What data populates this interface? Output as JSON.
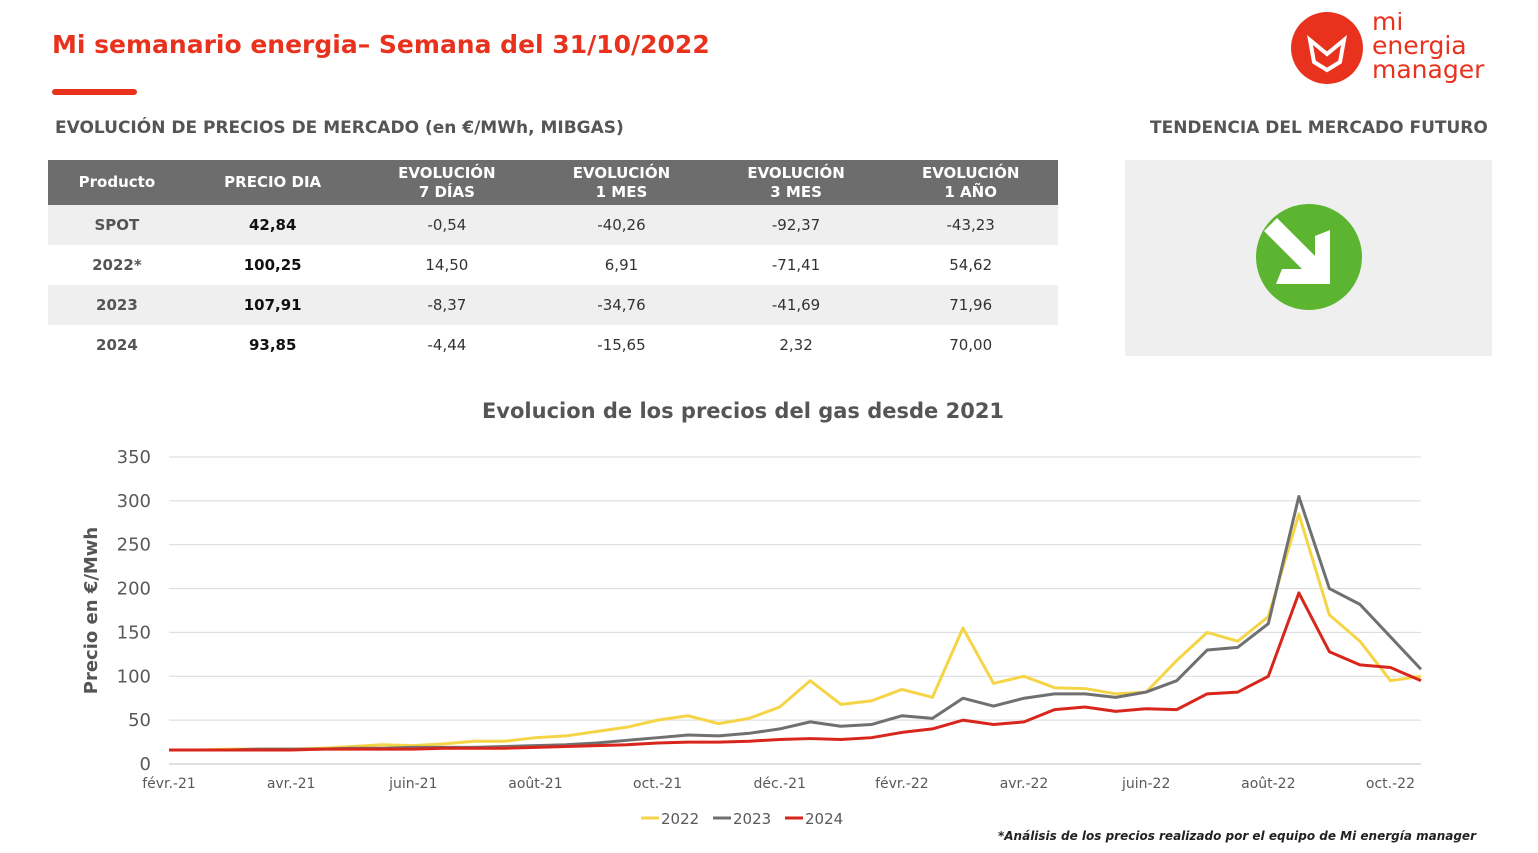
{
  "header": {
    "title": "Mi semanario energia– Semana del 31/10/2022",
    "logo_lines": [
      "mi",
      "energia",
      "manager"
    ]
  },
  "table": {
    "title": "EVOLUCIÓN DE PRECIOS DE MERCADO (en €/MWh, MIBGAS)",
    "columns": [
      "Producto",
      "PRECIO DIA",
      "EVOLUCIÓN\n7 DÍAS",
      "EVOLUCIÓN\n1 MES",
      "EVOLUCIÓN\n3 MES",
      "EVOLUCIÓN\n1 AÑO"
    ],
    "rows": [
      [
        "SPOT",
        "42,84",
        "-0,54",
        "-40,26",
        "-92,37",
        "-43,23"
      ],
      [
        "2022*",
        "100,25",
        "14,50",
        "6,91",
        "-71,41",
        "54,62"
      ],
      [
        "2023",
        "107,91",
        "-8,37",
        "-34,76",
        "-41,69",
        "71,96"
      ],
      [
        "2024",
        "93,85",
        "-4,44",
        "-15,65",
        "2,32",
        "70,00"
      ]
    ]
  },
  "trend": {
    "title": "TENDENCIA DEL MERCADO FUTURO"
  },
  "chart_data": {
    "type": "line",
    "title": "Evolucion de los precios del gas desde 2021",
    "ylabel": "Precio en €/Mwh",
    "categories": [
      "févr.-21",
      null,
      null,
      null,
      "avr.-21",
      null,
      null,
      null,
      "juin-21",
      null,
      null,
      null,
      "août-21",
      null,
      null,
      null,
      "oct.-21",
      null,
      null,
      null,
      "déc.-21",
      null,
      null,
      null,
      "févr.-22",
      null,
      null,
      null,
      "avr.-22",
      null,
      null,
      null,
      "juin-22",
      null,
      null,
      null,
      "août-22",
      null,
      null,
      null,
      "oct.-22",
      null
    ],
    "series": [
      {
        "name": "2022",
        "color": "#f5d547",
        "values": [
          16,
          16,
          17,
          17,
          17,
          18,
          20,
          22,
          21,
          23,
          26,
          26,
          30,
          32,
          37,
          42,
          50,
          55,
          46,
          52,
          65,
          95,
          68,
          72,
          85,
          76,
          155,
          92,
          100,
          87,
          86,
          80,
          82,
          118,
          150,
          140,
          168,
          285,
          170,
          140,
          95,
          100
        ]
      },
      {
        "name": "2023",
        "color": "#707070",
        "values": [
          16,
          16,
          16,
          17,
          17,
          17,
          18,
          18,
          19,
          19,
          19,
          20,
          21,
          22,
          24,
          27,
          30,
          33,
          32,
          35,
          40,
          48,
          43,
          45,
          55,
          52,
          75,
          66,
          75,
          80,
          80,
          76,
          82,
          95,
          130,
          133,
          160,
          305,
          200,
          182,
          145,
          108
        ]
      },
      {
        "name": "2024",
        "color": "#d9261c",
        "values": [
          16,
          16,
          16,
          16,
          16,
          17,
          17,
          17,
          17,
          18,
          18,
          18,
          19,
          20,
          21,
          22,
          24,
          25,
          25,
          26,
          28,
          29,
          28,
          30,
          36,
          40,
          50,
          45,
          48,
          62,
          65,
          60,
          63,
          62,
          80,
          82,
          100,
          195,
          128,
          113,
          110,
          95
        ]
      }
    ],
    "ylim": [
      0,
      350
    ],
    "yticks": [
      0,
      50,
      100,
      150,
      200,
      250,
      300,
      350
    ],
    "grid": true,
    "legend": "bottom"
  },
  "footnote": "*Análisis de los precios realizado por el equipo de Mi energía manager"
}
